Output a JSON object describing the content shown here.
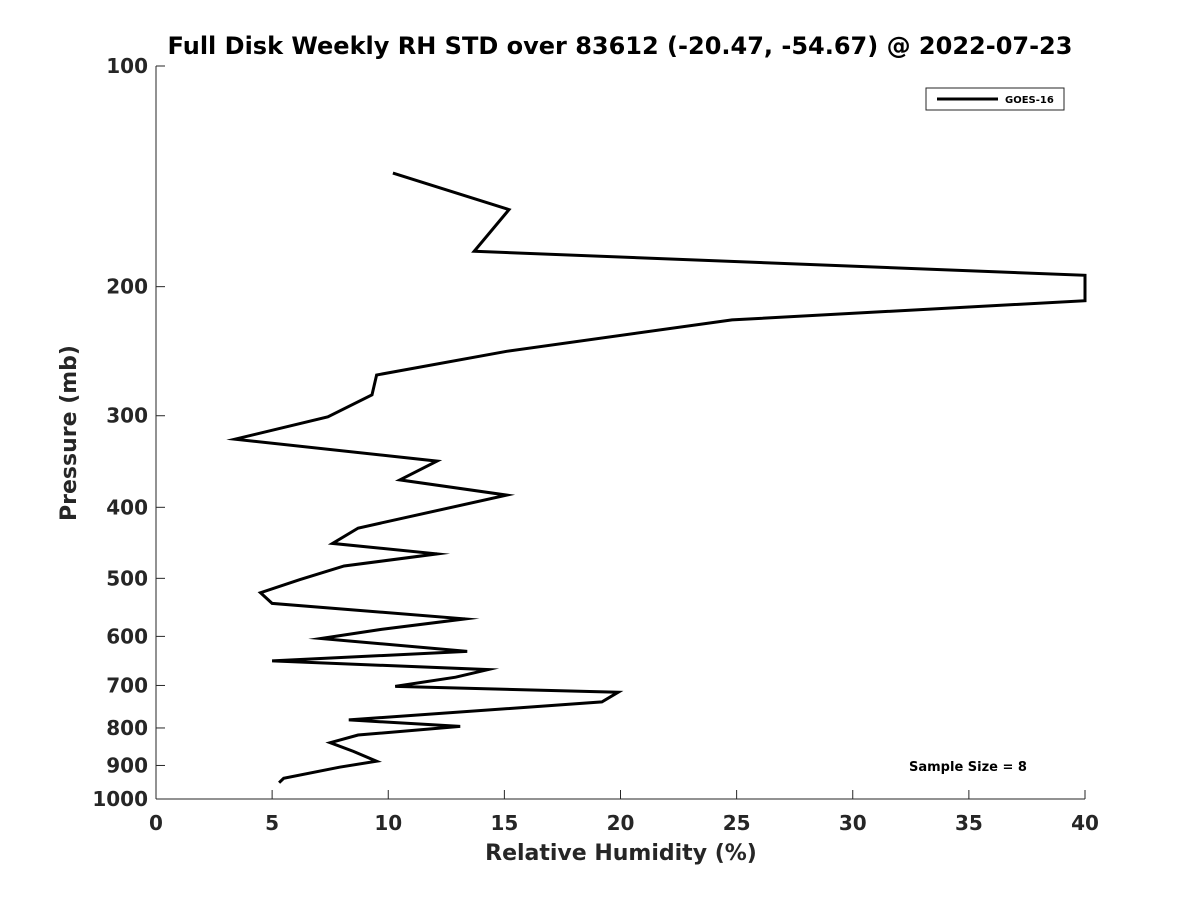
{
  "chart_data": {
    "type": "line",
    "title": "Full Disk Weekly RH STD over 83612 (-20.47, -54.67) @ 2022-07-23",
    "xlabel": "Relative Humidity (%)",
    "ylabel": "Pressure (mb)",
    "xlim": [
      0,
      40
    ],
    "ylim": [
      100,
      1000
    ],
    "yscale": "log",
    "y_reversed": true,
    "xticks": [
      0,
      5,
      10,
      15,
      20,
      25,
      30,
      35,
      40
    ],
    "yticks": [
      100,
      200,
      300,
      400,
      500,
      600,
      700,
      800,
      900,
      1000
    ],
    "legend_position": "top-right",
    "annotation": "Sample Size = 8",
    "series": [
      {
        "name": "GOES-16",
        "color": "#000000",
        "points": [
          {
            "p": 140,
            "rh": 10.2
          },
          {
            "p": 157,
            "rh": 15.2
          },
          {
            "p": 179,
            "rh": 13.7
          },
          {
            "p": 193,
            "rh": 40
          },
          {
            "p": 209,
            "rh": 40
          },
          {
            "p": 222,
            "rh": 24.8
          },
          {
            "p": 245,
            "rh": 15.1
          },
          {
            "p": 264,
            "rh": 9.5
          },
          {
            "p": 281,
            "rh": 9.3
          },
          {
            "p": 301,
            "rh": 7.4
          },
          {
            "p": 323,
            "rh": 3.4
          },
          {
            "p": 346,
            "rh": 12.1
          },
          {
            "p": 367,
            "rh": 10.5
          },
          {
            "p": 385,
            "rh": 15.1
          },
          {
            "p": 427,
            "rh": 8.7
          },
          {
            "p": 448,
            "rh": 7.6
          },
          {
            "p": 463,
            "rh": 12.1
          },
          {
            "p": 481,
            "rh": 8.1
          },
          {
            "p": 502,
            "rh": 6.2
          },
          {
            "p": 523,
            "rh": 4.5
          },
          {
            "p": 541,
            "rh": 5.0
          },
          {
            "p": 568,
            "rh": 13.3
          },
          {
            "p": 587,
            "rh": 9.7
          },
          {
            "p": 604,
            "rh": 7.1
          },
          {
            "p": 629,
            "rh": 13.4
          },
          {
            "p": 648,
            "rh": 5.0
          },
          {
            "p": 666,
            "rh": 14.3
          },
          {
            "p": 682,
            "rh": 12.9
          },
          {
            "p": 702,
            "rh": 10.3
          },
          {
            "p": 715,
            "rh": 19.9
          },
          {
            "p": 737,
            "rh": 19.2
          },
          {
            "p": 780,
            "rh": 8.3
          },
          {
            "p": 796,
            "rh": 13.1
          },
          {
            "p": 818,
            "rh": 8.7
          },
          {
            "p": 838,
            "rh": 7.5
          },
          {
            "p": 861,
            "rh": 8.5
          },
          {
            "p": 888,
            "rh": 9.5
          },
          {
            "p": 905,
            "rh": 7.9
          },
          {
            "p": 937,
            "rh": 5.5
          },
          {
            "p": 950,
            "rh": 5.3
          }
        ]
      }
    ]
  }
}
